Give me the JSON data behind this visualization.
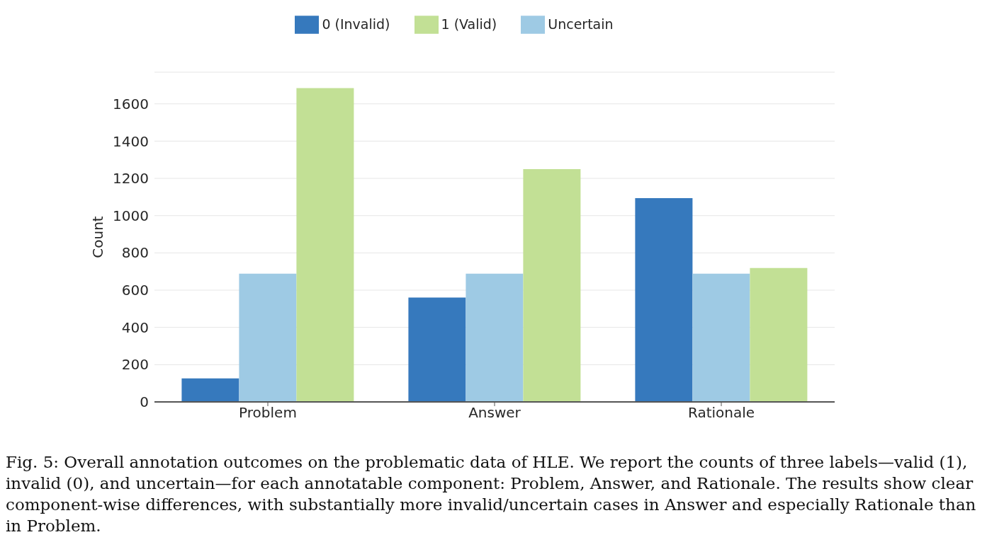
{
  "chart_data": {
    "type": "bar",
    "categories": [
      "Problem",
      "Answer",
      "Rationale"
    ],
    "ylabel": "Count",
    "ylim": [
      0,
      1770
    ],
    "yticks": [
      0,
      200,
      400,
      600,
      800,
      1000,
      1200,
      1400,
      1600
    ],
    "grid": "y",
    "legend": "top",
    "series": [
      {
        "name": "0 (Invalid)",
        "color": "#3679bd",
        "values": [
          126,
          560,
          1094
        ]
      },
      {
        "name": "Uncertain",
        "color": "#9ecae4",
        "values": [
          688,
          688,
          688
        ]
      },
      {
        "name": "1 (Valid)",
        "color": "#c2e095",
        "values": [
          1685,
          1250,
          719
        ]
      }
    ],
    "annotations": [
      "Fig. 5: Overall annotation outcomes on the problematic data of HLE. We report the counts of three labels—valid (1), invalid (0), and uncertain—for each annotatable component: Problem, Answer, and Rationale. The results show clear component-wise differences, with substantially more invalid/uncertain cases in Answer and especially Rationale than in Problem."
    ]
  }
}
